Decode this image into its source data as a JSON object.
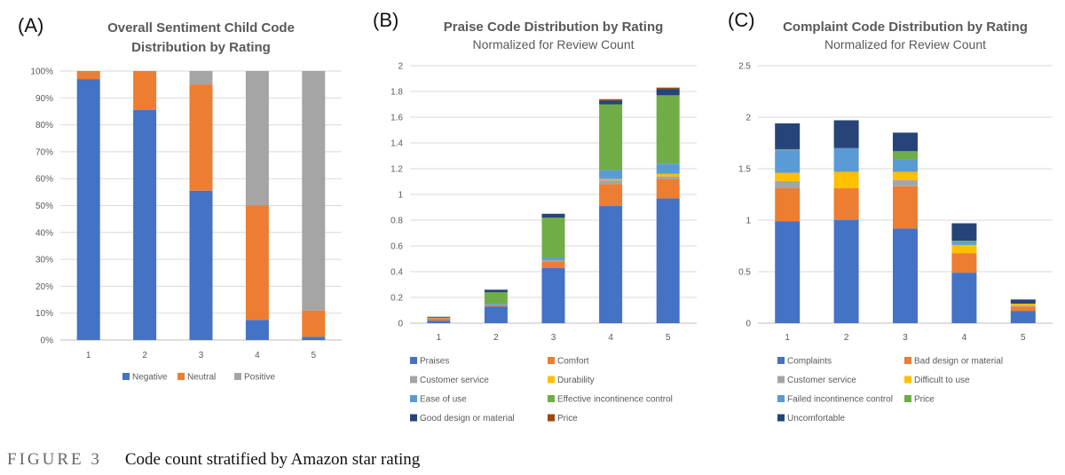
{
  "chart_data": [
    {
      "panel_label": "(A)",
      "type": "bar",
      "stacked": true,
      "title": "Overall Sentiment Child Code Distribution by Rating",
      "title_lines": [
        "Overall Sentiment Child Code",
        "Distribution by Rating"
      ],
      "subtitle": "",
      "xlabel": "",
      "ylabel": "",
      "ylim": [
        0,
        1
      ],
      "yticks": [
        "0%",
        "10%",
        "20%",
        "30%",
        "40%",
        "50%",
        "60%",
        "70%",
        "80%",
        "90%",
        "100%"
      ],
      "categories": [
        "1",
        "2",
        "3",
        "4",
        "5"
      ],
      "grid": true,
      "legend_position": "bottom",
      "series": [
        {
          "name": "Negative",
          "color": "#4472c4",
          "values": [
            0.97,
            0.855,
            0.555,
            0.075,
            0.012
          ]
        },
        {
          "name": "Neutral",
          "color": "#ed7d31",
          "values": [
            0.03,
            0.145,
            0.395,
            0.425,
            0.098
          ]
        },
        {
          "name": "Positive",
          "color": "#a5a5a5",
          "values": [
            0.0,
            0.0,
            0.05,
            0.5,
            0.89
          ]
        }
      ]
    },
    {
      "panel_label": "(B)",
      "type": "bar",
      "stacked": true,
      "title": "Praise Code Distribution by Rating",
      "subtitle": "Normalized for Review Count",
      "xlabel": "",
      "ylabel": "",
      "ylim": [
        0,
        2
      ],
      "yticks": [
        "0",
        "0.2",
        "0.4",
        "0.6",
        "0.8",
        "1",
        "1.2",
        "1.4",
        "1.6",
        "1.8",
        "2"
      ],
      "categories": [
        "1",
        "2",
        "3",
        "4",
        "5"
      ],
      "grid": true,
      "legend_position": "bottom",
      "series": [
        {
          "name": "Praises",
          "color": "#4472c4",
          "values": [
            0.02,
            0.13,
            0.43,
            0.91,
            0.97
          ]
        },
        {
          "name": "Comfort",
          "color": "#ed7d31",
          "values": [
            0.02,
            0.01,
            0.05,
            0.17,
            0.15
          ]
        },
        {
          "name": "Customer service",
          "color": "#a5a5a5",
          "values": [
            0.0,
            0.0,
            0.01,
            0.03,
            0.02
          ]
        },
        {
          "name": "Durability",
          "color": "#ffc000",
          "values": [
            0.0,
            0.0,
            0.0,
            0.01,
            0.02
          ]
        },
        {
          "name": "Ease of use",
          "color": "#5b9bd5",
          "values": [
            0.0,
            0.01,
            0.02,
            0.07,
            0.08
          ]
        },
        {
          "name": "Effective incontinence control",
          "color": "#70ad47",
          "values": [
            0.005,
            0.09,
            0.31,
            0.51,
            0.53
          ]
        },
        {
          "name": "Good design or material",
          "color": "#264478",
          "values": [
            0.005,
            0.02,
            0.03,
            0.03,
            0.05
          ]
        },
        {
          "name": "Price",
          "color": "#9e480e",
          "values": [
            0.0,
            0.0,
            0.0,
            0.01,
            0.01
          ]
        }
      ]
    },
    {
      "panel_label": "(C)",
      "type": "bar",
      "stacked": true,
      "title": "Complaint Code Distribution by Rating",
      "subtitle": "Normalized for Review Count",
      "xlabel": "",
      "ylabel": "",
      "ylim": [
        0,
        2.5
      ],
      "yticks": [
        "0",
        "0.5",
        "1",
        "1.5",
        "2",
        "2.5"
      ],
      "categories": [
        "1",
        "2",
        "3",
        "4",
        "5"
      ],
      "grid": true,
      "legend_position": "bottom",
      "series": [
        {
          "name": "Complaints",
          "color": "#4472c4",
          "values": [
            0.99,
            1.0,
            0.92,
            0.49,
            0.12
          ]
        },
        {
          "name": "Bad design or material",
          "color": "#ed7d31",
          "values": [
            0.32,
            0.31,
            0.41,
            0.19,
            0.04
          ]
        },
        {
          "name": "Customer service",
          "color": "#a5a5a5",
          "values": [
            0.07,
            0.0,
            0.06,
            0.0,
            0.01
          ]
        },
        {
          "name": "Difficult to use",
          "color": "#ffc000",
          "values": [
            0.08,
            0.16,
            0.08,
            0.08,
            0.02
          ]
        },
        {
          "name": "Failed incontinence control",
          "color": "#5b9bd5",
          "values": [
            0.22,
            0.23,
            0.12,
            0.03,
            0.0
          ]
        },
        {
          "name": "Price",
          "color": "#70ad47",
          "values": [
            0.01,
            0.0,
            0.08,
            0.01,
            0.0
          ]
        },
        {
          "name": "Uncomfortable",
          "color": "#264478",
          "values": [
            0.25,
            0.27,
            0.18,
            0.17,
            0.04
          ]
        }
      ]
    }
  ],
  "caption": {
    "label": "FIGURE 3",
    "text": "Code count stratified by Amazon star rating"
  }
}
